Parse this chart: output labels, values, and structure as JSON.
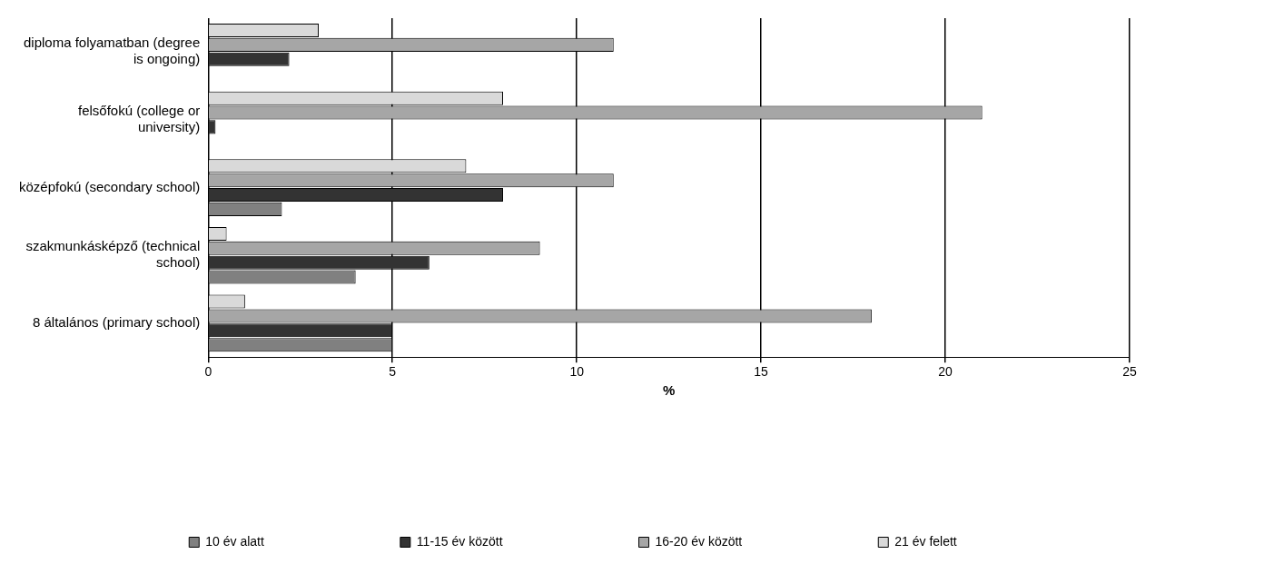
{
  "chart_data": {
    "type": "bar",
    "orientation": "horizontal",
    "xlabel": "%",
    "categories": [
      "diploma folyamatban (degree is ongoing)",
      "felsőfokú (college or university)",
      "középfokú (secondary school)",
      "szakmunkásképző (technical school)",
      "8 általános (primary school)"
    ],
    "series": [
      {
        "name": "10 év alatt",
        "color": "#808080",
        "values": [
          null,
          null,
          2,
          4,
          5
        ]
      },
      {
        "name": "11-15 év között",
        "color": "#333333",
        "values": [
          2.2,
          0.2,
          8,
          6,
          5
        ]
      },
      {
        "name": "16-20 év között",
        "color": "#a6a6a6",
        "values": [
          11,
          21,
          11,
          9,
          18
        ]
      },
      {
        "name": "21 év felett",
        "color": "#d9d9d9",
        "values": [
          3,
          8,
          7,
          0.5,
          1
        ]
      }
    ],
    "xlim": [
      0,
      25
    ],
    "xticks": [
      0,
      5,
      10,
      15,
      20,
      25
    ],
    "grid": "x",
    "legend": "bottom"
  }
}
